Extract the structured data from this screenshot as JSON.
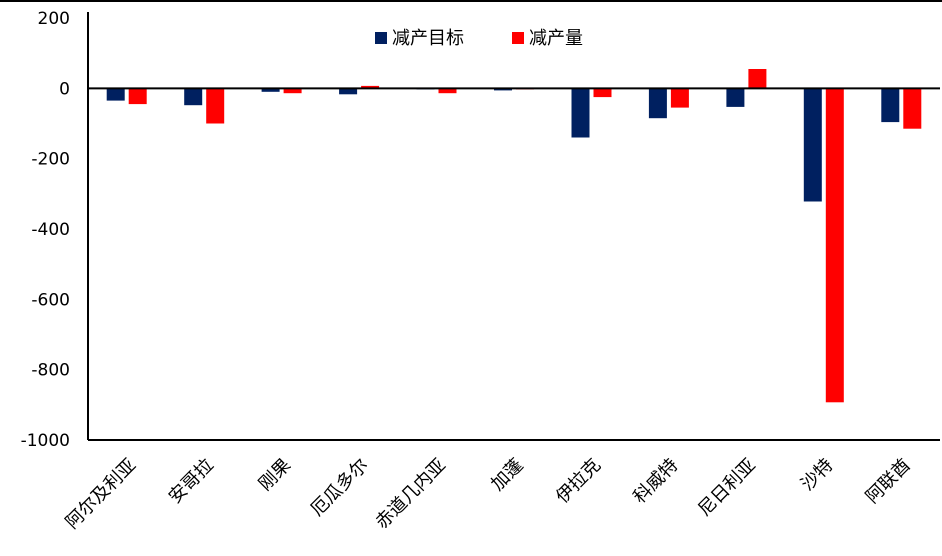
{
  "chart_data": {
    "type": "bar",
    "title": "",
    "xlabel": "",
    "ylabel": "",
    "ylim": [
      -1000,
      200
    ],
    "yticks": [
      200,
      0,
      -200,
      -400,
      -600,
      -800,
      -1000
    ],
    "ytick_labels": [
      "200",
      "0",
      "-200",
      "-400",
      "-600",
      "-800",
      "-1000"
    ],
    "categories": [
      "阿尔及利亚",
      "安哥拉",
      "刚果",
      "厄瓜多尔",
      "赤道几内亚",
      "加蓬",
      "伊拉克",
      "科威特",
      "尼日利亚",
      "沙特",
      "阿联酋"
    ],
    "series": [
      {
        "name": "减产目标",
        "color": "#002060",
        "values": [
          -35,
          -48,
          -10,
          -17,
          -3,
          -6,
          -140,
          -85,
          -53,
          -322,
          -96
        ]
      },
      {
        "name": "减产量",
        "color": "#ff0000",
        "values": [
          -45,
          -100,
          -14,
          7,
          -14,
          -3,
          -25,
          -55,
          55,
          -893,
          -115
        ]
      }
    ],
    "legend_position": "top-center",
    "grid": false
  }
}
